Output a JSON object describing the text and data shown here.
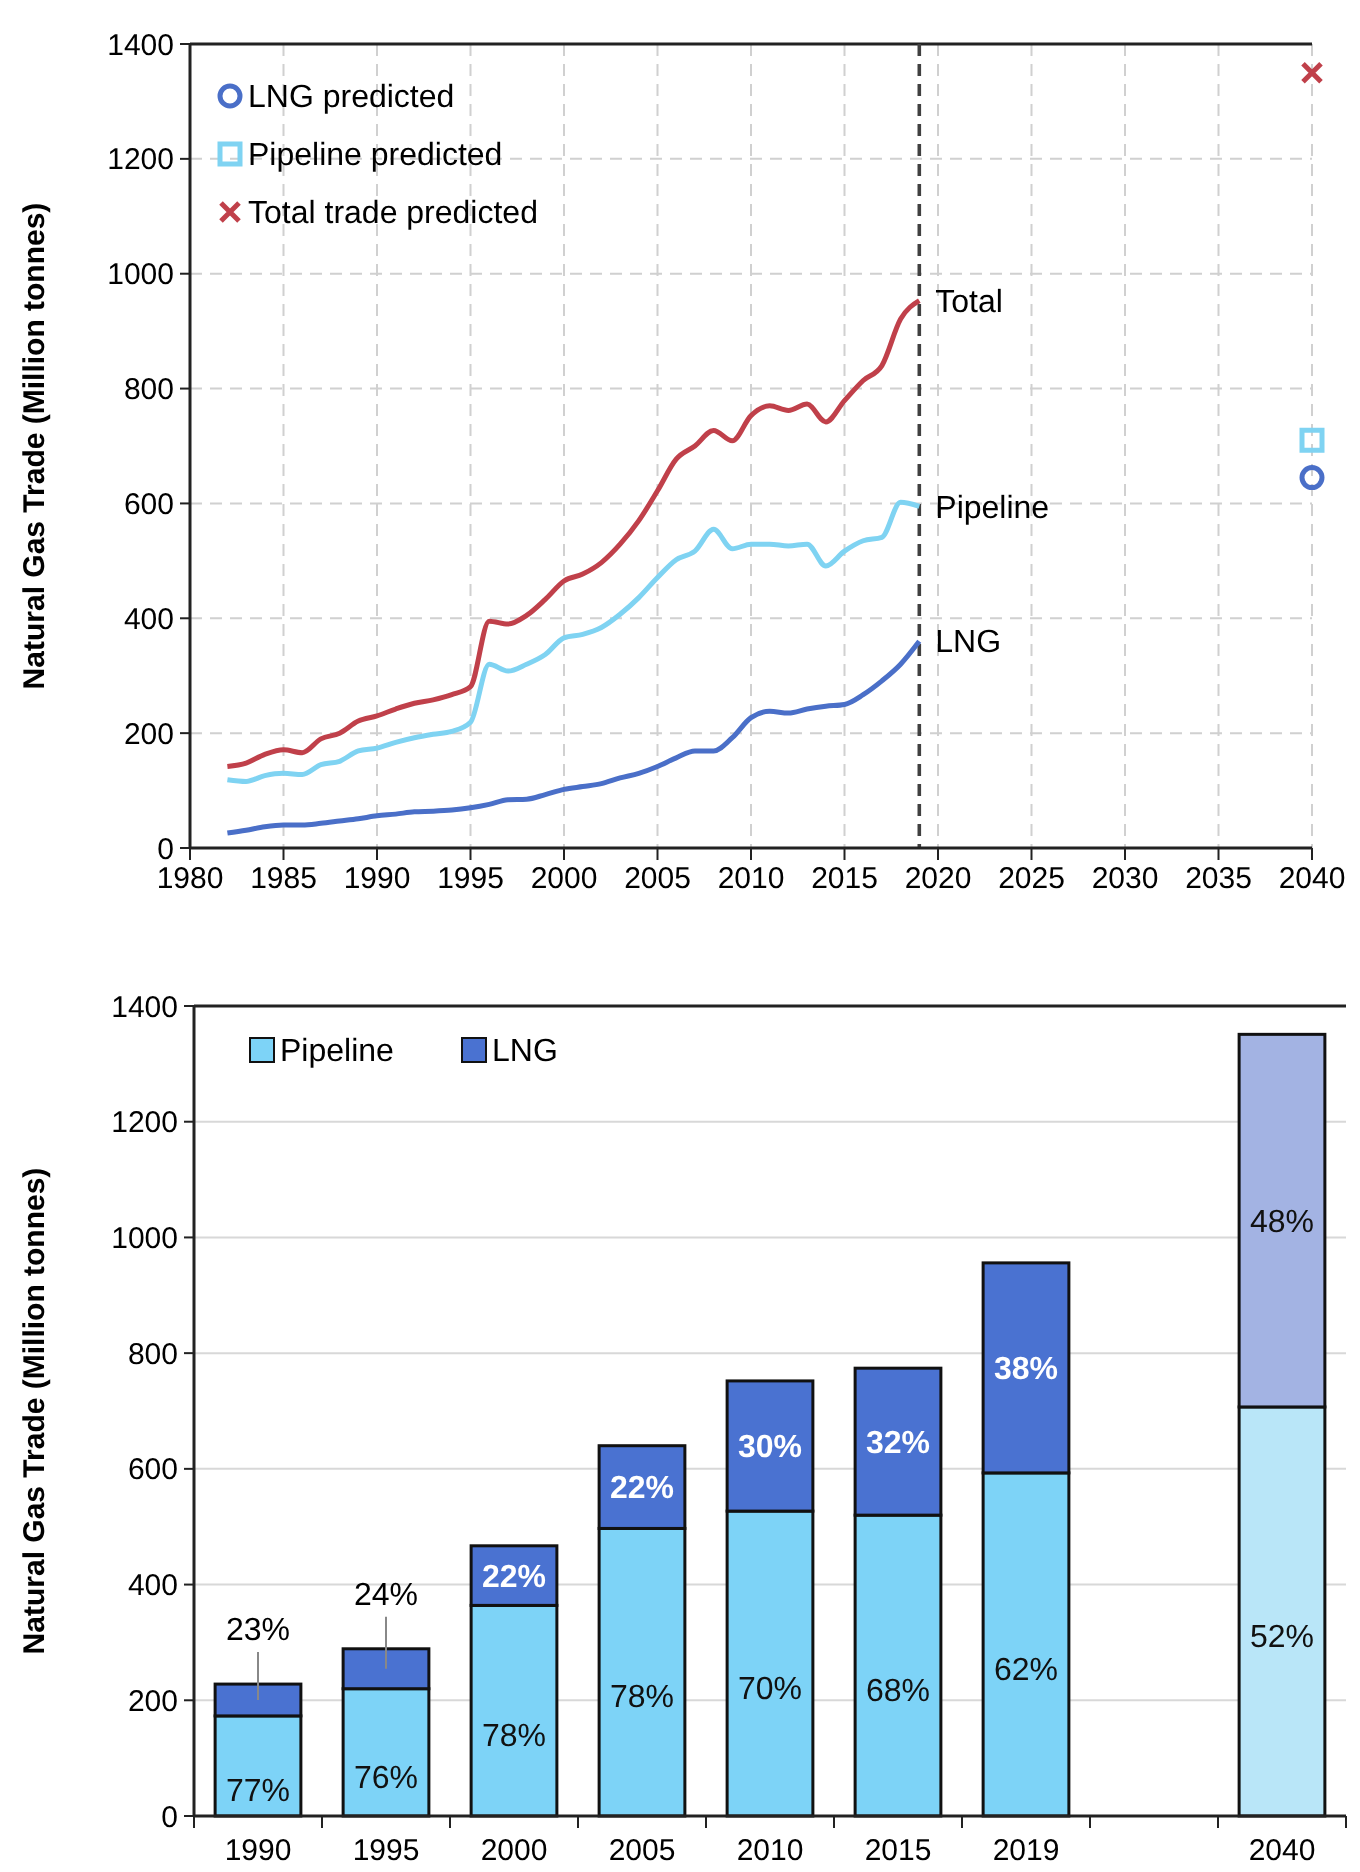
{
  "chart_data": [
    {
      "type": "line",
      "ylabel": "Natural Gas Trade (Million tonnes)",
      "xlim": [
        1980,
        2040
      ],
      "xticks": [
        1980,
        1985,
        1990,
        1995,
        2000,
        2005,
        2010,
        2015,
        2020,
        2025,
        2030,
        2035,
        2040
      ],
      "ylim": [
        0,
        1400
      ],
      "yticks": [
        0,
        200,
        400,
        600,
        800,
        1000,
        1200,
        1400
      ],
      "grid": true,
      "legend": "top left",
      "ref_lines": [
        {
          "axis": "x",
          "value": 2019,
          "color": "#404040",
          "line_style": "dashed"
        }
      ],
      "series": [
        {
          "name": "Total",
          "type": "line",
          "color": "#c0404a",
          "x": [
            1982,
            1983,
            1984,
            1985,
            1986,
            1987,
            1988,
            1989,
            1990,
            1991,
            1992,
            1993,
            1994,
            1995,
            1996,
            1997,
            1998,
            1999,
            2000,
            2001,
            2002,
            2003,
            2004,
            2005,
            2006,
            2007,
            2008,
            2009,
            2010,
            2011,
            2012,
            2013,
            2014,
            2015,
            2016,
            2017,
            2018,
            2019
          ],
          "values": [
            142,
            148,
            163,
            171,
            166,
            190,
            200,
            221,
            230,
            242,
            252,
            258,
            267,
            281,
            395,
            390,
            405,
            433,
            465,
            477,
            497,
            529,
            570,
            622,
            677,
            700,
            727,
            709,
            753,
            770,
            762,
            773,
            742,
            779,
            814,
            840,
            921,
            953
          ]
        },
        {
          "name": "Pipeline",
          "type": "line",
          "color": "#7fd3f2",
          "x": [
            1982,
            1983,
            1984,
            1985,
            1986,
            1987,
            1988,
            1989,
            1990,
            1991,
            1992,
            1993,
            1994,
            1995,
            1996,
            1997,
            1998,
            1999,
            2000,
            2001,
            2002,
            2003,
            2004,
            2005,
            2006,
            2007,
            2008,
            2009,
            2010,
            2011,
            2012,
            2013,
            2014,
            2015,
            2016,
            2017,
            2018,
            2019
          ],
          "values": [
            119,
            116,
            126,
            130,
            128,
            145,
            151,
            169,
            174,
            184,
            192,
            198,
            203,
            219,
            320,
            308,
            320,
            337,
            366,
            372,
            384,
            407,
            436,
            471,
            502,
            517,
            555,
            521,
            529,
            529,
            526,
            529,
            491,
            517,
            535,
            541,
            602,
            595
          ]
        },
        {
          "name": "LNG",
          "type": "line",
          "color": "#4a6fc8",
          "x": [
            1982,
            1983,
            1984,
            1985,
            1986,
            1987,
            1988,
            1989,
            1990,
            1991,
            1992,
            1993,
            1994,
            1995,
            1996,
            1997,
            1998,
            1999,
            2000,
            2001,
            2002,
            2003,
            2004,
            2005,
            2006,
            2007,
            2008,
            2009,
            2010,
            2011,
            2012,
            2013,
            2014,
            2015,
            2016,
            2017,
            2018,
            2019
          ],
          "values": [
            26,
            31,
            37,
            40,
            40,
            43,
            47,
            51,
            56,
            59,
            63,
            64,
            66,
            70,
            76,
            84,
            85,
            93,
            102,
            107,
            112,
            122,
            130,
            142,
            157,
            169,
            169,
            192,
            227,
            238,
            235,
            242,
            247,
            250,
            267,
            291,
            320,
            360
          ]
        },
        {
          "name": "LNG predicted",
          "type": "scatter",
          "marker": "circle",
          "color": "#4a6fc8",
          "x": [
            2040
          ],
          "values": [
            645
          ]
        },
        {
          "name": "Pipeline predicted",
          "type": "scatter",
          "marker": "square",
          "color": "#7fd3f2",
          "x": [
            2040
          ],
          "values": [
            710
          ]
        },
        {
          "name": "Total trade predicted",
          "type": "scatter",
          "marker": "cross",
          "color": "#c0404a",
          "x": [
            2040
          ],
          "values": [
            1350
          ]
        }
      ]
    },
    {
      "type": "bar",
      "stacked": true,
      "ylabel": "Natural Gas Trade (Million tonnes)",
      "categories": [
        "1990",
        "1995",
        "2000",
        "2005",
        "2010",
        "2015",
        "2019",
        null,
        "2040"
      ],
      "ylim": [
        0,
        1400
      ],
      "yticks": [
        0,
        200,
        400,
        600,
        800,
        1000,
        1200,
        1400
      ],
      "grid": "y",
      "legend": "top left",
      "series": [
        {
          "name": "Pipeline",
          "color": "#7dd3f7",
          "colors": [
            "#7dd3f7",
            "#7dd3f7",
            "#7dd3f7",
            "#7dd3f7",
            "#7dd3f7",
            "#7dd3f7",
            "#7dd3f7",
            "#7dd3f7",
            "#b9e6f8"
          ],
          "values": [
            173,
            220,
            364,
            497,
            527,
            520,
            593,
            null,
            707
          ]
        },
        {
          "name": "LNG",
          "color": "#4a72d1",
          "colors": [
            "#4a72d1",
            "#4a72d1",
            "#4a72d1",
            "#4a72d1",
            "#4a72d1",
            "#4a72d1",
            "#4a72d1",
            "#4a72d1",
            "#a3b3e3"
          ],
          "values": [
            55,
            69,
            103,
            143,
            225,
            254,
            363,
            null,
            644
          ]
        }
      ],
      "annotations": [
        "77%",
        "23%",
        "76%",
        "24%",
        "78%",
        "22%",
        "78%",
        "22%",
        "70%",
        "30%",
        "68%",
        "32%",
        "62%",
        "38%",
        "52%",
        "48%"
      ]
    }
  ]
}
